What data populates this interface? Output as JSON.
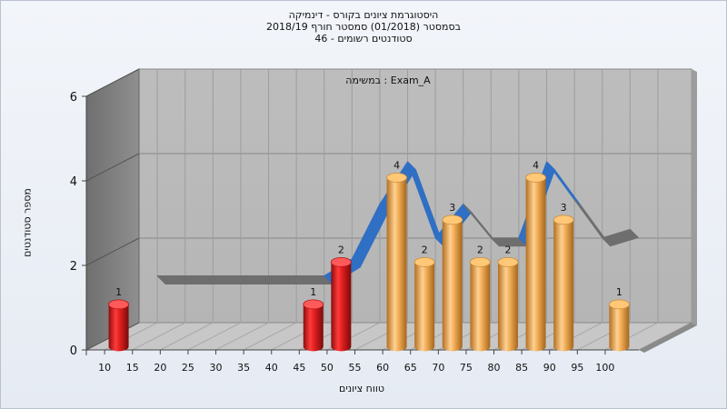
{
  "header": {
    "title_line1": "היסטוגרמת ציונים בקורס - דינמיקה",
    "title_line2": "בסמסטר  (01/2018)  סמסטר חורף 2018/19",
    "title_line3": "סטודנטים רשומים - 46"
  },
  "chart_data": {
    "type": "bar",
    "subtitle": "במשימה : Exam_A",
    "xlabel": "טווח ציונים",
    "ylabel": "מספר סטודנטים",
    "x_ticks": [
      "10",
      "15",
      "20",
      "25",
      "30",
      "35",
      "40",
      "45",
      "50",
      "55",
      "60",
      "65",
      "70",
      "75",
      "80",
      "85",
      "90",
      "95",
      "100"
    ],
    "y_ticks": [
      "0",
      "2",
      "4",
      "6"
    ],
    "ylim": [
      0,
      6
    ],
    "series": [
      {
        "type": "bar",
        "x": [
          10,
          45,
          50,
          60,
          65,
          70,
          75,
          80,
          85,
          90,
          100
        ],
        "values": [
          1,
          1,
          2,
          4,
          2,
          3,
          2,
          2,
          4,
          3,
          1
        ],
        "colors": [
          "#d42020",
          "#d42020",
          "#d42020",
          "#e8a040",
          "#e8a040",
          "#e8a040",
          "#e8a040",
          "#e8a040",
          "#e8a040",
          "#e8a040",
          "#e8a040"
        ]
      },
      {
        "type": "line",
        "x": [
          15,
          20,
          25,
          30,
          35,
          40,
          45,
          50,
          55,
          60,
          65,
          70,
          75,
          80,
          85,
          90,
          95,
          100
        ],
        "values": [
          1.3,
          1.3,
          1.3,
          1.3,
          1.3,
          1.3,
          1.3,
          1.7,
          3.0,
          4.0,
          2.2,
          3.0,
          2.2,
          2.2,
          4.0,
          3.1,
          2.2,
          2.4
        ],
        "color": "#6e6e6e",
        "highlight_color": "#2f6fc4"
      }
    ],
    "grid": true,
    "legend": "none"
  }
}
